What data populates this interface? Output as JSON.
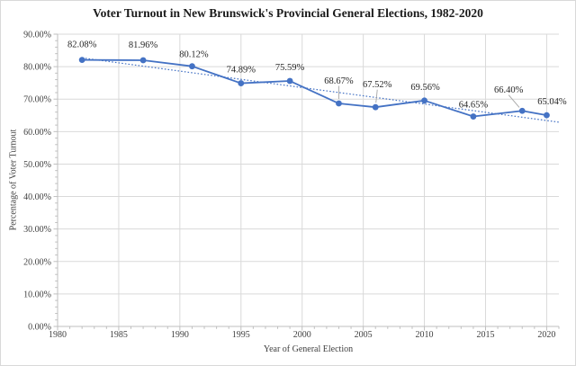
{
  "chart_data": {
    "type": "line",
    "title": "Voter Turnout in New Brunswick's Provincial General Elections, 1982-2020",
    "xlabel": "Year of General Election",
    "ylabel": "Percentage of Voter Turnout",
    "xlim": [
      1980,
      2021
    ],
    "ylim": [
      0,
      90
    ],
    "x_major_unit": 5,
    "x_minor_unit": 1,
    "y_major_unit": 10,
    "y_minor_unit": 2,
    "grid": "major",
    "legend": "none",
    "x_tick_labels": [
      "1980",
      "1985",
      "1990",
      "1995",
      "2000",
      "2005",
      "2010",
      "2015",
      "2020"
    ],
    "x_tick_values": [
      1980,
      1985,
      1990,
      1995,
      2000,
      2005,
      2010,
      2015,
      2020
    ],
    "y_tick_labels": [
      "0.00%",
      "10.00%",
      "20.00%",
      "30.00%",
      "40.00%",
      "50.00%",
      "60.00%",
      "70.00%",
      "80.00%",
      "90.00%"
    ],
    "y_tick_values": [
      0,
      10,
      20,
      30,
      40,
      50,
      60,
      70,
      80,
      90
    ],
    "series": [
      {
        "name": "Voter Turnout",
        "color": "#4472C4",
        "marker": "circle",
        "points": [
          {
            "x": 1982,
            "y": 82.08,
            "label": "82.08%",
            "label_dx": 0,
            "label_dy": -14,
            "leader": false
          },
          {
            "x": 1987,
            "y": 81.96,
            "label": "81.96%",
            "label_dx": 0,
            "label_dy": -14,
            "leader": false
          },
          {
            "x": 1991,
            "y": 80.12,
            "label": "80.12%",
            "label_dx": 2,
            "label_dy": -10,
            "leader": false
          },
          {
            "x": 1995,
            "y": 74.89,
            "label": "74.89%",
            "label_dx": 0,
            "label_dy": -12,
            "leader": false
          },
          {
            "x": 1999,
            "y": 75.59,
            "label": "75.59%",
            "label_dx": 0,
            "label_dy": -12,
            "leader": false
          },
          {
            "x": 2003,
            "y": 68.67,
            "label": "68.67%",
            "label_dx": 0,
            "label_dy": -22,
            "leader": true
          },
          {
            "x": 2006,
            "y": 67.52,
            "label": "67.52%",
            "label_dx": 2,
            "label_dy": -22,
            "leader": true
          },
          {
            "x": 2010,
            "y": 69.56,
            "label": "69.56%",
            "label_dx": 1,
            "label_dy": -12,
            "leader": false
          },
          {
            "x": 2014,
            "y": 64.65,
            "label": "64.65%",
            "label_dx": 0,
            "label_dy": -10,
            "leader": false
          },
          {
            "x": 2018,
            "y": 66.4,
            "label": "66.40%",
            "label_dx": -15,
            "label_dy": -20,
            "leader": true
          },
          {
            "x": 2020,
            "y": 65.04,
            "label": "65.04%",
            "label_dx": 6,
            "label_dy": -12,
            "leader": false
          }
        ]
      }
    ],
    "trendline": {
      "type": "linear",
      "style": "dotted",
      "color": "#4472C4",
      "x1": 1982,
      "y1": 82.69,
      "x2": 2021,
      "y2": 62.9
    },
    "colors": {
      "gridline": "#D9D9D9",
      "axis_line": "#BFBFBF",
      "tick_label": "#404040",
      "data_label": "#262626",
      "leader_line": "#A6A6A6",
      "background": "#FFFFFF",
      "border": "#D9D9D9"
    }
  }
}
